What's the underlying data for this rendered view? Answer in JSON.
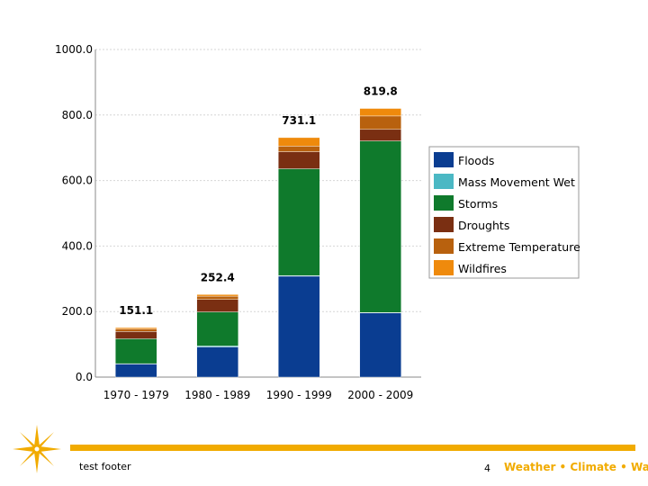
{
  "chart_data": {
    "type": "bar",
    "stacked": true,
    "categories": [
      "1970 - 1979",
      "1980 - 1989",
      "1990 - 1999",
      "2000 - 2009"
    ],
    "series": [
      {
        "name": "Floods",
        "color": "#0a3d91",
        "values": [
          40,
          92,
          308,
          196
        ]
      },
      {
        "name": "Mass Movement Wet",
        "color": "#4bb8c4",
        "values": [
          1,
          3,
          2,
          1
        ]
      },
      {
        "name": "Storms",
        "color": "#0f7a2c",
        "values": [
          76,
          104,
          326,
          524
        ]
      },
      {
        "name": "Droughts",
        "color": "#7a2f12",
        "values": [
          22,
          38,
          52,
          35
        ]
      },
      {
        "name": "Extreme Temperature",
        "color": "#b8610e",
        "values": [
          8,
          10,
          17,
          41
        ]
      },
      {
        "name": "Wildfires",
        "color": "#ef8a0c",
        "values": [
          4,
          5,
          26,
          23
        ]
      }
    ],
    "totals": [
      "151.1",
      "252.4",
      "731.1",
      "819.8"
    ],
    "yticks": [
      "0.0",
      "200.0",
      "400.0",
      "600.0",
      "800.0",
      "1000.0"
    ],
    "ylim": [
      0,
      1000
    ],
    "grid": true,
    "legend_position": "right"
  },
  "footer": {
    "text": "test footer",
    "page_number": "4",
    "brand": "Weather • Climate • Water",
    "accent_color": "#f1ab00"
  }
}
